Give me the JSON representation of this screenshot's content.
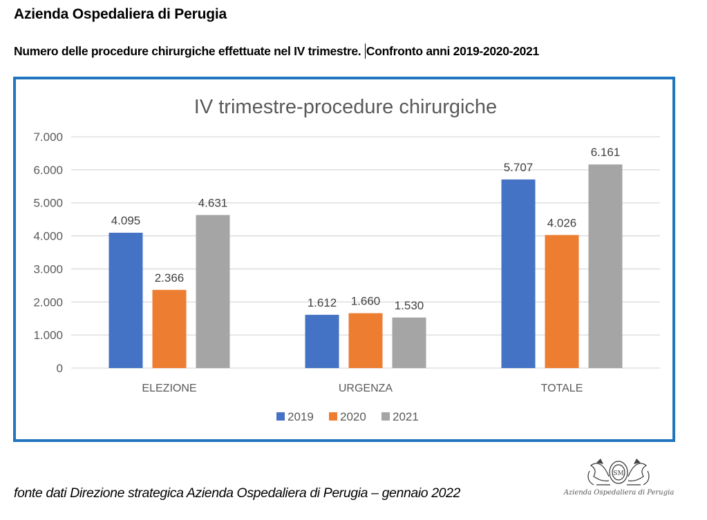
{
  "header": {
    "title": "Azienda Ospedaliera di Perugia",
    "subtitle_part1": "Numero delle procedure chirurgiche effettuate nel IV trimestre.",
    "subtitle_part2": "Confronto anni 2019-2020-2021"
  },
  "footer": {
    "source_note": "fonte dati Direzione strategica Azienda Ospedaliera di Perugia – gennaio 2022",
    "logo_caption": "Azienda Ospedaliera di Perugia",
    "logo_icon": "coat-of-arms-griffins-icon"
  },
  "colors": {
    "border": "#2075bd",
    "series_2019": "#4472c4",
    "series_2020": "#ed7d31",
    "series_2021": "#a5a5a5",
    "grid": "#d9d9d9",
    "text": "#595959"
  },
  "chart_data": {
    "type": "bar",
    "title": "IV trimestre-procedure chirurgiche",
    "xlabel": "",
    "ylabel": "",
    "categories": [
      "ELEZIONE",
      "URGENZA",
      "TOTALE"
    ],
    "series": [
      {
        "name": "2019",
        "values": [
          4095,
          1612,
          5707
        ],
        "labels": [
          "4.095",
          "1.612",
          "5.707"
        ]
      },
      {
        "name": "2020",
        "values": [
          2366,
          1660,
          4026
        ],
        "labels": [
          "2.366",
          "1.660",
          "4.026"
        ]
      },
      {
        "name": "2021",
        "values": [
          4631,
          1530,
          6161
        ],
        "labels": [
          "4.631",
          "1.530",
          "6.161"
        ]
      }
    ],
    "ylim": [
      0,
      7000
    ],
    "yticks": [
      0,
      1000,
      2000,
      3000,
      4000,
      5000,
      6000,
      7000
    ],
    "ytick_labels": [
      "0",
      "1.000",
      "2.000",
      "3.000",
      "4.000",
      "5.000",
      "6.000",
      "7.000"
    ],
    "grid": true,
    "legend_position": "bottom"
  }
}
